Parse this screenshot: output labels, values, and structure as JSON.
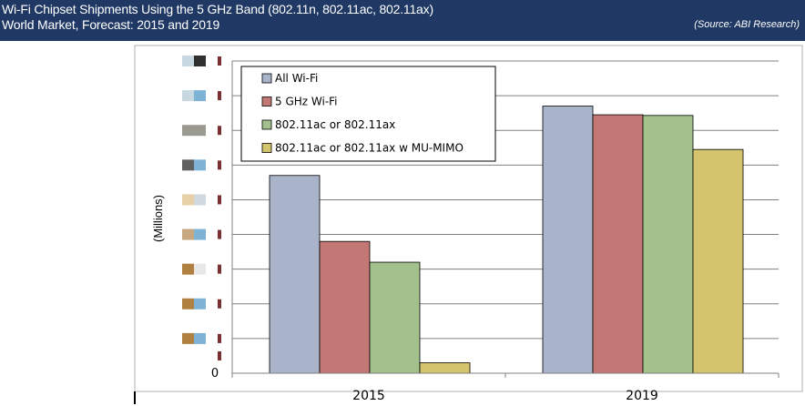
{
  "header": {
    "title_line1": "Wi-Fi Chipset Shipments Using the 5 GHz Band (802.11n, 802.11ac, 802.11ax)",
    "title_line2": "World Market, Forecast: 2015 and 2019",
    "source": "(Source: ABI Research)",
    "background": "#1f3864"
  },
  "chart_data": {
    "type": "bar",
    "categories": [
      "2015",
      "2019"
    ],
    "series": [
      {
        "name": "All Wi-Fi",
        "color": "#a9b4cb",
        "values": [
          57,
          77
        ]
      },
      {
        "name": "5 GHz Wi-Fi",
        "color": "#c47876",
        "values": [
          38,
          74.5
        ]
      },
      {
        "name": "802.11ac or 802.11ax",
        "color": "#a3c18c",
        "values": [
          32,
          74.3
        ]
      },
      {
        "name": "802.11ac or 802.11ax w MU-MIMO",
        "color": "#d5c46e",
        "values": [
          3,
          64.5
        ]
      }
    ],
    "ylabel": "(Millions)",
    "ytick_visible": "0",
    "ylim": [
      0,
      90
    ],
    "grid": true,
    "legend_position": "top-left"
  }
}
